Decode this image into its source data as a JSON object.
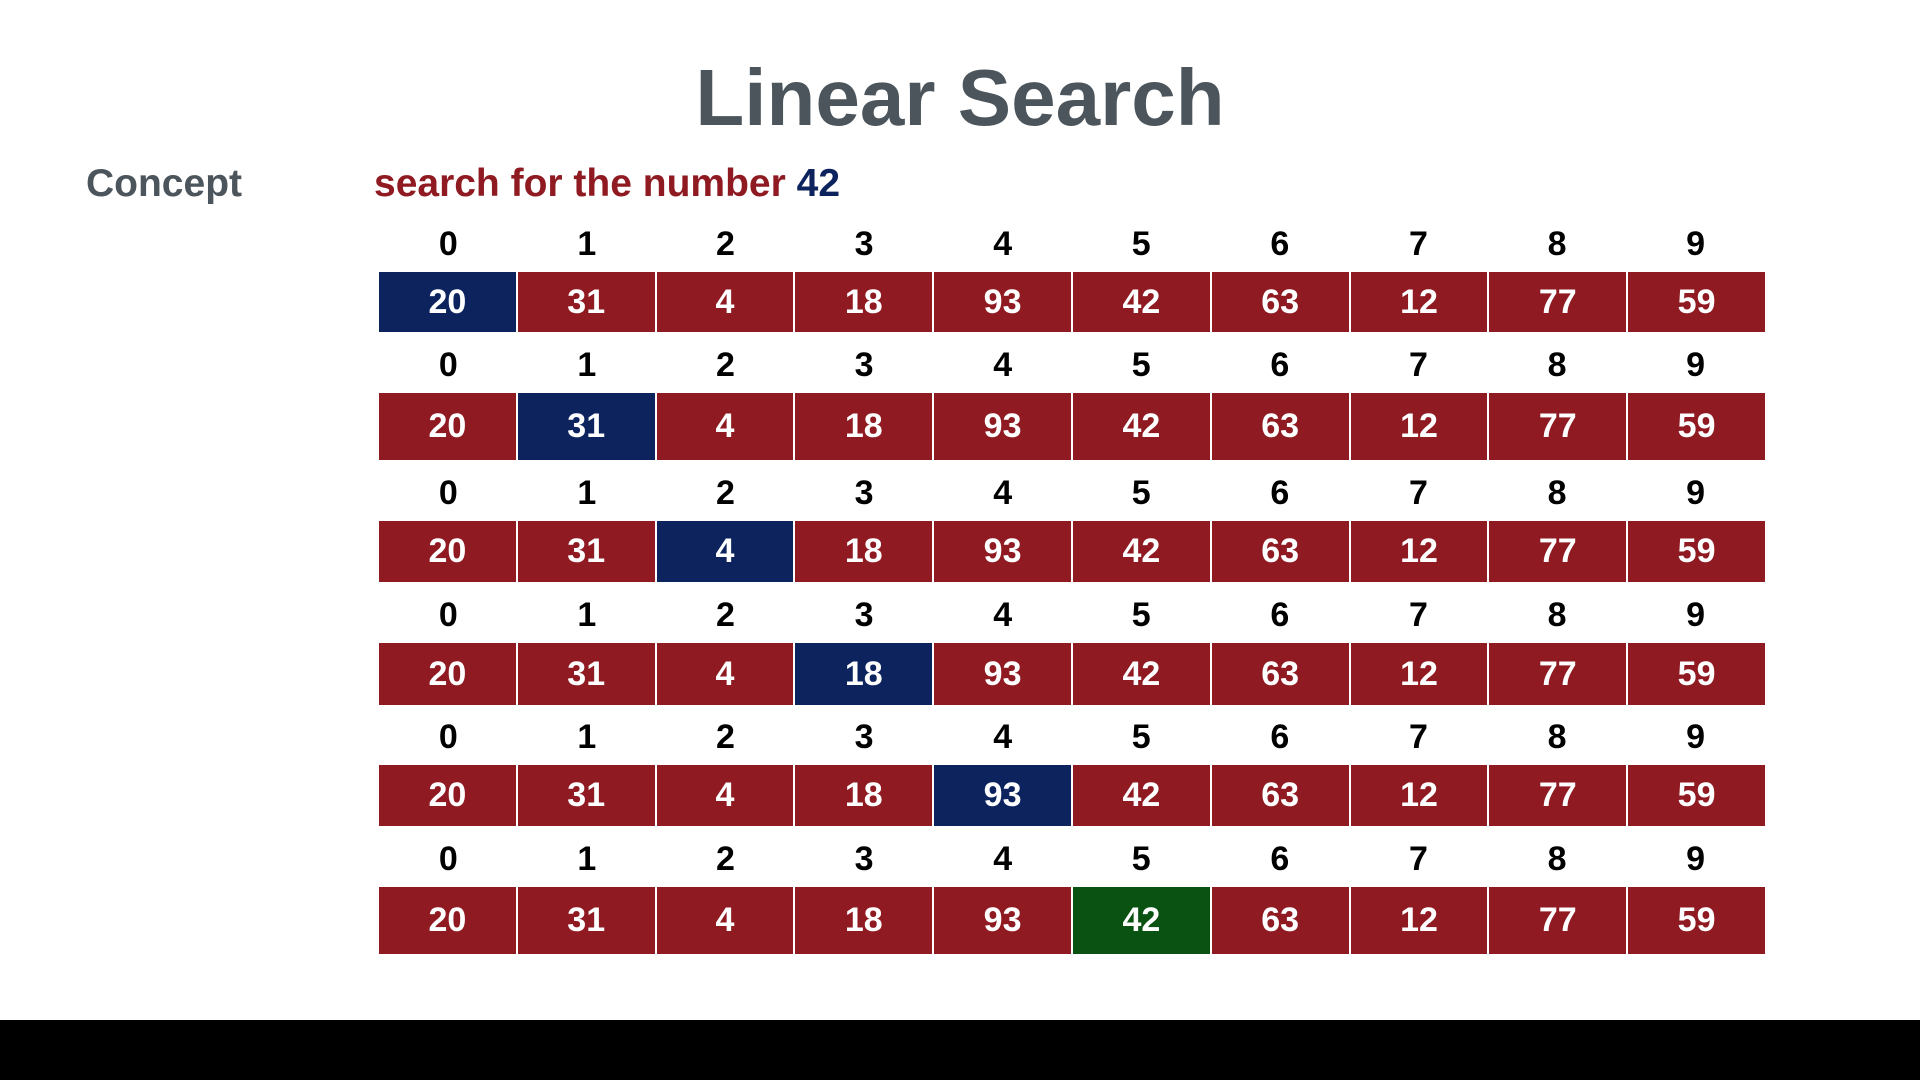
{
  "title": "Linear Search",
  "section_label": "Concept",
  "subtitle": {
    "lead": "search for the number",
    "target": "42"
  },
  "colors": {
    "cell": "#8f1a22",
    "current": "#0c235e",
    "found": "#0a5212",
    "heading": "#4b555b"
  },
  "indices": [
    "0",
    "1",
    "2",
    "3",
    "4",
    "5",
    "6",
    "7",
    "8",
    "9"
  ],
  "values": [
    "20",
    "31",
    "4",
    "18",
    "93",
    "42",
    "63",
    "12",
    "77",
    "59"
  ],
  "steps": [
    {
      "highlight_index": 0,
      "state": "current"
    },
    {
      "highlight_index": 1,
      "state": "current"
    },
    {
      "highlight_index": 2,
      "state": "current"
    },
    {
      "highlight_index": 3,
      "state": "current"
    },
    {
      "highlight_index": 4,
      "state": "current"
    },
    {
      "highlight_index": 5,
      "state": "found"
    }
  ]
}
